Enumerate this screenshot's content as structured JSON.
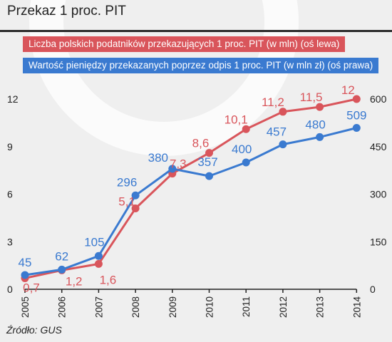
{
  "title": "Przekaz 1 proc. PIT",
  "source": "Źródło: GUS",
  "colors": {
    "red": "#d9555b",
    "blue": "#3a7ad0",
    "background": "#efefef"
  },
  "chart_data": {
    "type": "line",
    "title": "Przekaz 1 proc. PIT",
    "x": [
      "2005",
      "2006",
      "2007",
      "2008",
      "2009",
      "2010",
      "2011",
      "2012",
      "2013",
      "2014"
    ],
    "y_left": {
      "min": 0,
      "max": 12,
      "ticks": [
        "0",
        "3",
        "6",
        "9",
        "12"
      ]
    },
    "y_right": {
      "min": 0,
      "max": 600,
      "ticks": [
        "0",
        "150",
        "300",
        "450",
        "600"
      ]
    },
    "grid": false,
    "series": [
      {
        "name": "Liczba polskich podatników przekazujących 1 proc. PIT (w mln) (oś lewa)",
        "axis": "left",
        "color": "#d9555b",
        "values": [
          0.7,
          1.2,
          1.6,
          5.1,
          7.3,
          8.6,
          10.1,
          11.2,
          11.5,
          12
        ],
        "labels": [
          "0,7",
          "1,2",
          "1,6",
          "5,1",
          "7,3",
          "8,6",
          "10,1",
          "11,2",
          "11,5",
          "12"
        ]
      },
      {
        "name": "Wartość pieniędzy przekazanych poprzez odpis 1 proc. PIT (w mln zł) (oś prawa)",
        "axis": "right",
        "color": "#3a7ad0",
        "values": [
          45,
          62,
          105,
          296,
          380,
          357,
          400,
          457,
          480,
          509
        ],
        "labels": [
          "45",
          "62",
          "105",
          "296",
          "380",
          "357",
          "400",
          "457",
          "480",
          "509"
        ]
      }
    ]
  }
}
